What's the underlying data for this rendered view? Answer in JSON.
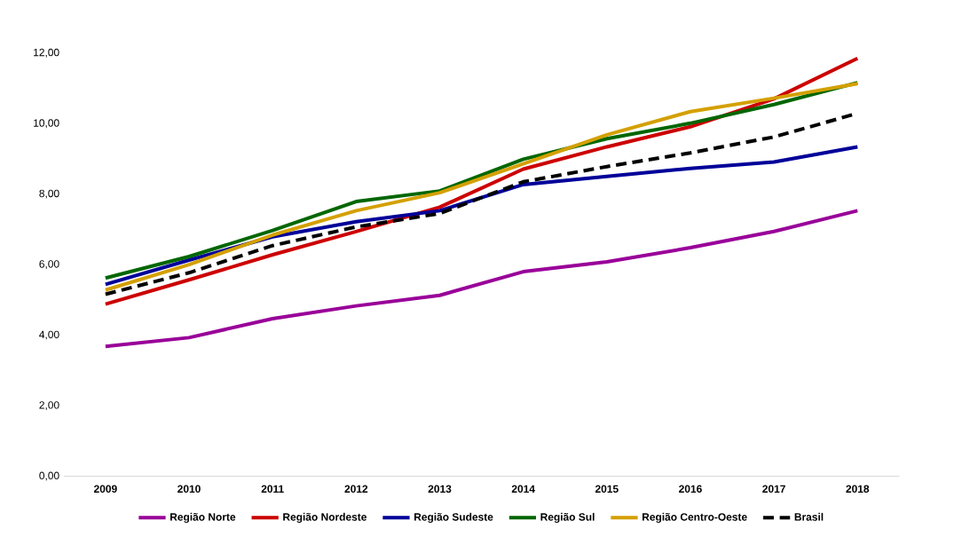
{
  "chart_data": {
    "type": "line",
    "categories": [
      "2009",
      "2010",
      "2011",
      "2012",
      "2013",
      "2014",
      "2015",
      "2016",
      "2017",
      "2018"
    ],
    "ylim": [
      0,
      12
    ],
    "yticks": [
      {
        "value": 0,
        "label": "0,00"
      },
      {
        "value": 2,
        "label": "2,00"
      },
      {
        "value": 4,
        "label": "4,00"
      },
      {
        "value": 6,
        "label": "6,00"
      },
      {
        "value": 8,
        "label": "8,00"
      },
      {
        "value": 10,
        "label": "10,00"
      },
      {
        "value": 12,
        "label": "12,00"
      }
    ],
    "grid": false,
    "legend": "bottom",
    "series": [
      {
        "name": "Região Norte",
        "color": "#990099",
        "values": [
          3.68,
          3.93,
          4.47,
          4.83,
          5.13,
          5.8,
          6.08,
          6.48,
          6.94,
          7.53
        ]
      },
      {
        "name": "Região Nordeste",
        "color": "#cc0000",
        "values": [
          4.88,
          5.57,
          6.28,
          6.94,
          7.63,
          8.71,
          9.34,
          9.91,
          10.7,
          11.85
        ]
      },
      {
        "name": "Região Sudeste",
        "color": "#000099",
        "values": [
          5.44,
          6.13,
          6.79,
          7.22,
          7.53,
          8.27,
          8.5,
          8.73,
          8.91,
          9.34
        ]
      },
      {
        "name": "Região Sul",
        "color": "#006600",
        "values": [
          5.62,
          6.23,
          6.97,
          7.79,
          8.09,
          8.99,
          9.57,
          10.01,
          10.54,
          11.16
        ]
      },
      {
        "name": "Região Centro-Oeste",
        "color": "#d4a000",
        "values": [
          5.28,
          6.0,
          6.84,
          7.53,
          8.04,
          8.86,
          9.68,
          10.34,
          10.72,
          11.13
        ]
      },
      {
        "name": "Brasil",
        "color": "#000000",
        "line_style": "dashed",
        "values": [
          5.16,
          5.77,
          6.54,
          7.07,
          7.45,
          8.35,
          8.78,
          9.17,
          9.62,
          10.29
        ]
      }
    ]
  }
}
